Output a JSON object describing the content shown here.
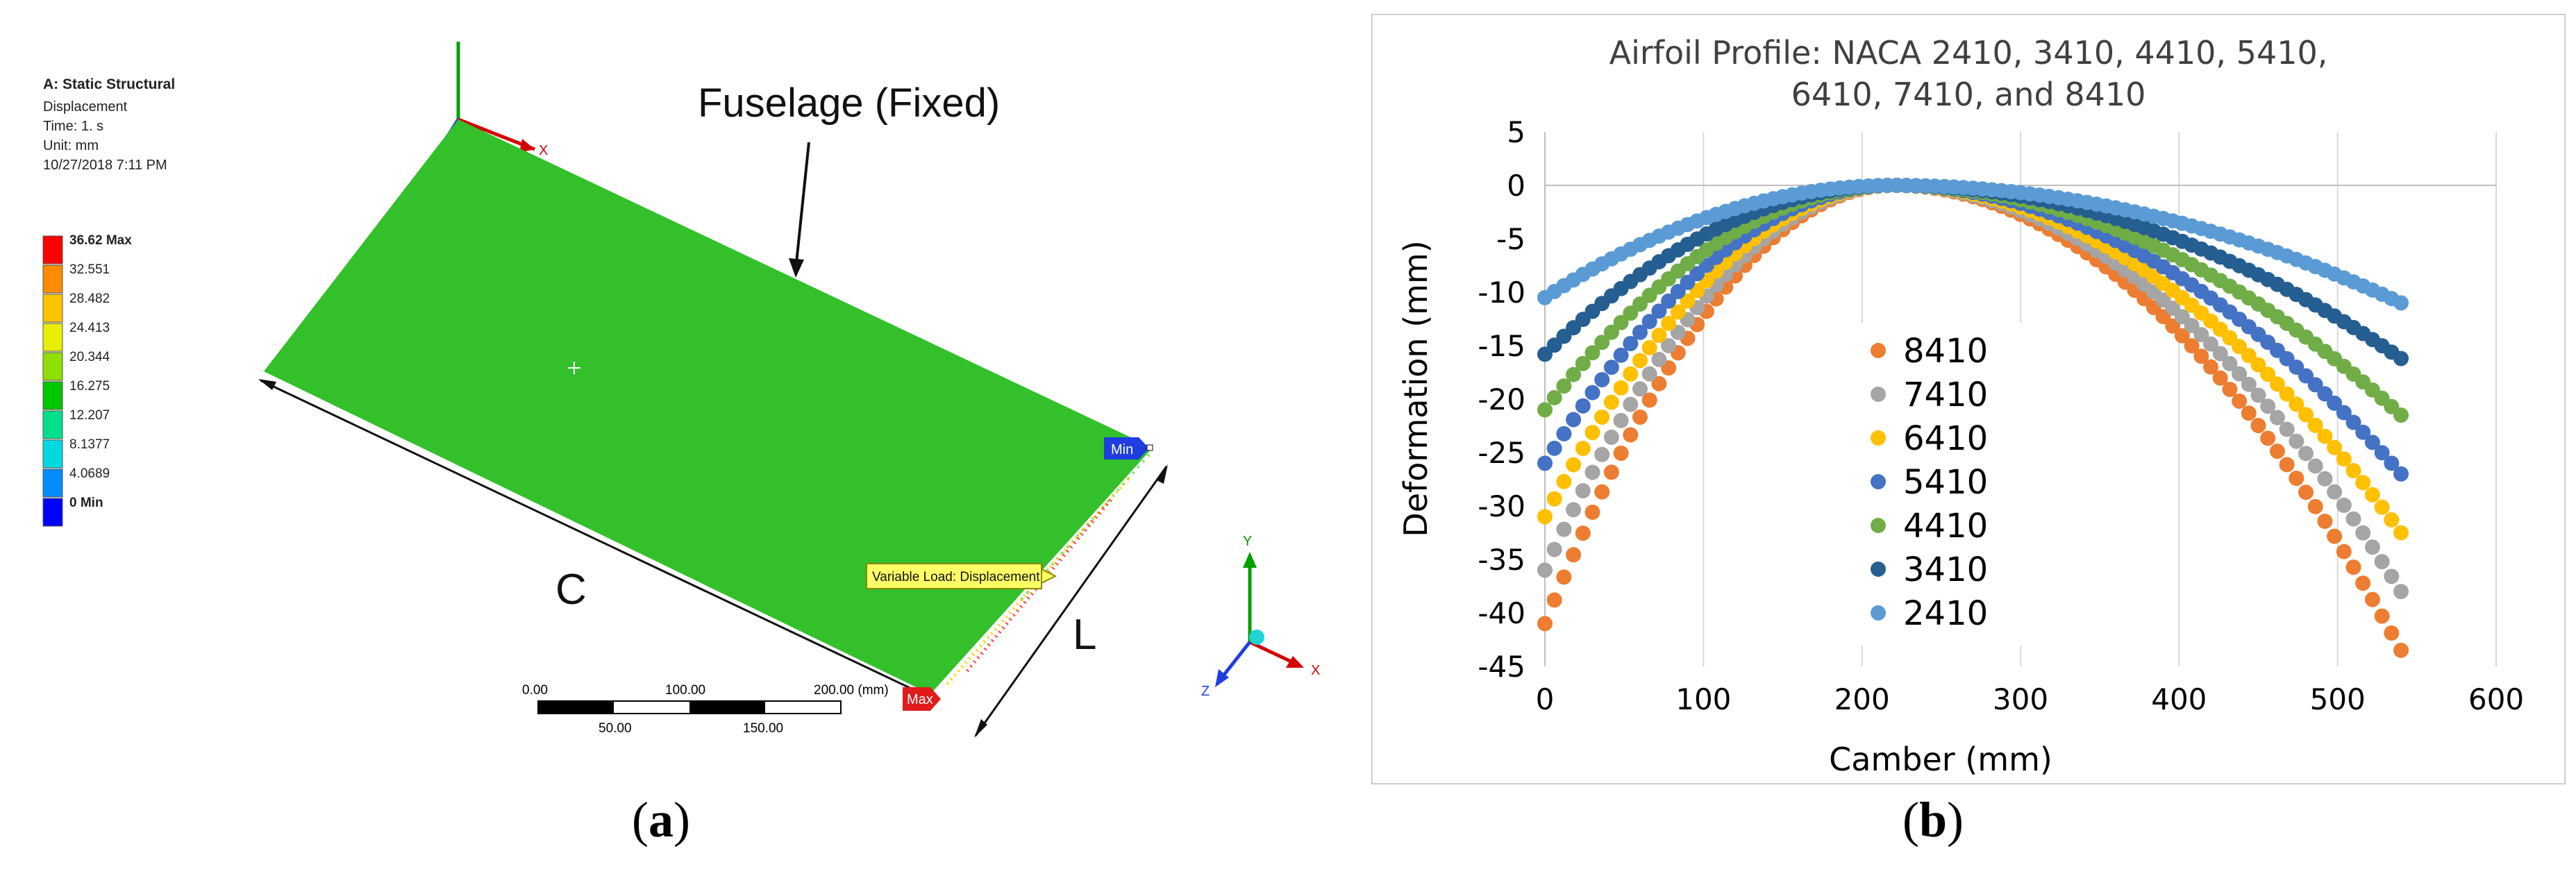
{
  "panel_a": {
    "header": "A: Static Structural",
    "info_lines": [
      "Displacement",
      "Time: 1. s",
      "Unit: mm",
      "10/27/2018 7:11 PM"
    ],
    "legend": [
      {
        "label": "36.62 Max",
        "color": "#ff0000"
      },
      {
        "label": "32.551",
        "color": "#ff8c00"
      },
      {
        "label": "28.482",
        "color": "#ffc400"
      },
      {
        "label": "24.413",
        "color": "#e8ee00"
      },
      {
        "label": "20.344",
        "color": "#8fe000"
      },
      {
        "label": "16.275",
        "color": "#00c800"
      },
      {
        "label": "12.207",
        "color": "#00e08c"
      },
      {
        "label": "8.1377",
        "color": "#00d8e0"
      },
      {
        "label": "4.0689",
        "color": "#008cff"
      },
      {
        "label": "0 Min",
        "color": "#0000ff"
      }
    ],
    "plate_color": "#33c02b",
    "fuselage_label": "Fuselage (Fixed)",
    "dim_c": "C",
    "dim_l": "L",
    "min_tag": "Min",
    "max_tag": "Max",
    "load_label": "Variable Load: Displacement",
    "origin_axis_x": "X",
    "triad_x": "X",
    "triad_y": "Y",
    "triad_z": "Z",
    "scale_top": [
      "0.00",
      "100.00",
      "200.00 (mm)"
    ],
    "scale_bottom": [
      "50.00",
      "150.00"
    ],
    "caption": "a"
  },
  "chart_data": {
    "type": "scatter",
    "title_lines": [
      "Airfoil Profile: NACA 2410, 3410, 4410, 5410,",
      "6410, 7410, and 8410"
    ],
    "xlabel": "Camber (mm)",
    "ylabel": "Deformation (mm)",
    "xlim": [
      0,
      600
    ],
    "ylim": [
      -45,
      5
    ],
    "xticks": [
      0,
      100,
      200,
      300,
      400,
      500,
      600
    ],
    "yticks": [
      5,
      0,
      -5,
      -10,
      -15,
      -20,
      -25,
      -30,
      -35,
      -40,
      -45
    ],
    "grid": "vertical",
    "legend_position": "center",
    "x_range_of_points": [
      0,
      540
    ],
    "peak_x": 220,
    "series": [
      {
        "name": "8410",
        "color": "#ed7d31",
        "y_at_x0": -41,
        "y_at_x540": -43.5
      },
      {
        "name": "7410",
        "color": "#a5a5a5",
        "y_at_x0": -36,
        "y_at_x540": -38
      },
      {
        "name": "6410",
        "color": "#ffc000",
        "y_at_x0": -31,
        "y_at_x540": -32.5
      },
      {
        "name": "5410",
        "color": "#4472c4",
        "y_at_x0": -26,
        "y_at_x540": -27
      },
      {
        "name": "4410",
        "color": "#70ad47",
        "y_at_x0": -21,
        "y_at_x540": -21.5
      },
      {
        "name": "3410",
        "color": "#255e91",
        "y_at_x0": -15.8,
        "y_at_x540": -16.2
      },
      {
        "name": "2410",
        "color": "#5b9bd5",
        "y_at_x0": -10.5,
        "y_at_x540": -11
      }
    ],
    "caption": "b"
  }
}
